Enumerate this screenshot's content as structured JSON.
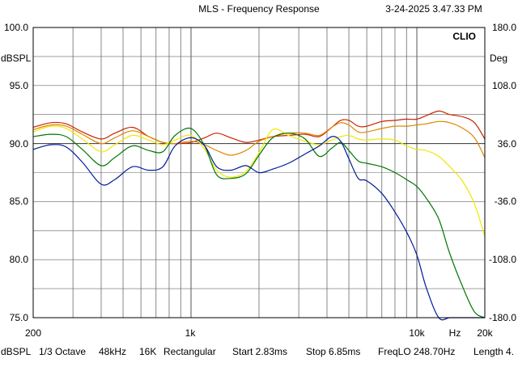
{
  "header": {
    "title": "MLS - Frequency Response",
    "timestamp": "3-24-2025 3.47.33 PM",
    "brand": "CLIO"
  },
  "footer": {
    "unit": "dBSPL",
    "smoothing": "1/3 Octave",
    "sample_rate": "48kHz",
    "size": "16K",
    "window": "Rectangular",
    "start": "Start 2.83ms",
    "stop": "Stop 6.85ms",
    "freqlo": "FreqLO 248.70Hz",
    "length": "Length 4."
  },
  "chart_data": {
    "type": "line",
    "xscale": "log",
    "xlim": [
      200,
      20000
    ],
    "ylim": [
      75,
      100
    ],
    "y2lim": [
      -180,
      180
    ],
    "ylabel": "dBSPL",
    "y2label": "Deg",
    "xlabel": "Hz",
    "grid": true,
    "x_ticks": [
      {
        "value": 200,
        "label": "200"
      },
      {
        "value": 1000,
        "label": "1k"
      },
      {
        "value": 10000,
        "label": "10k"
      },
      {
        "value": 20000,
        "label": "20k"
      }
    ],
    "y_ticks": [
      "100.0",
      "95.0",
      "90.0",
      "85.0",
      "80.0",
      "75.0"
    ],
    "y2_ticks": [
      "180.0",
      "108.0",
      "36.0",
      "-36.0",
      "-108.0",
      "-180.0"
    ],
    "series": [
      {
        "color": "#cc2200",
        "x": [
          200,
          240,
          280,
          330,
          400,
          460,
          550,
          650,
          750,
          850,
          1000,
          1150,
          1300,
          1500,
          1750,
          2000,
          2300,
          2700,
          3200,
          3700,
          4200,
          4600,
          5000,
          5500,
          6000,
          7000,
          8000,
          9000,
          10000,
          11000,
          12500,
          14000,
          16000,
          18000,
          20000
        ],
        "y": [
          91.4,
          91.8,
          91.7,
          91.0,
          90.4,
          90.9,
          91.4,
          90.6,
          90.1,
          90.0,
          90.1,
          90.5,
          90.9,
          90.5,
          90.1,
          90.3,
          90.6,
          90.7,
          90.8,
          90.6,
          91.4,
          92.0,
          92.0,
          91.5,
          91.5,
          91.9,
          92.0,
          92.1,
          92.1,
          92.4,
          92.8,
          92.5,
          92.3,
          91.8,
          90.4
        ]
      },
      {
        "color": "#dd8800",
        "x": [
          200,
          240,
          280,
          330,
          400,
          460,
          550,
          650,
          750,
          850,
          1000,
          1150,
          1300,
          1500,
          1750,
          2000,
          2300,
          2700,
          3200,
          3700,
          4200,
          4600,
          5000,
          5500,
          6000,
          7000,
          8000,
          9000,
          10000,
          11000,
          12500,
          14000,
          16000,
          18000,
          20000
        ],
        "y": [
          91.2,
          91.6,
          91.5,
          90.8,
          90.0,
          90.5,
          91.1,
          90.6,
          90.1,
          90.0,
          90.2,
          89.9,
          89.4,
          89.0,
          89.4,
          90.2,
          90.6,
          90.9,
          90.9,
          90.7,
          91.4,
          91.8,
          91.6,
          91.0,
          91.0,
          91.3,
          91.5,
          91.5,
          91.6,
          91.7,
          91.9,
          91.8,
          91.3,
          90.5,
          88.8
        ]
      },
      {
        "color": "#f0e800",
        "x": [
          200,
          240,
          280,
          330,
          400,
          460,
          550,
          650,
          750,
          850,
          1000,
          1150,
          1300,
          1500,
          1750,
          2000,
          2300,
          2700,
          3200,
          3700,
          4200,
          4600,
          5000,
          5500,
          6000,
          7000,
          8000,
          9000,
          10000,
          11000,
          12500,
          14000,
          16000,
          18000,
          20000
        ],
        "y": [
          91.0,
          91.5,
          91.3,
          90.4,
          89.3,
          89.9,
          90.7,
          90.3,
          89.9,
          90.3,
          90.7,
          89.5,
          87.7,
          87.1,
          87.6,
          89.2,
          91.2,
          90.7,
          90.2,
          89.9,
          90.3,
          90.6,
          90.7,
          90.4,
          90.3,
          90.4,
          90.3,
          89.8,
          89.5,
          89.4,
          88.9,
          88.0,
          86.7,
          84.8,
          82.0
        ]
      },
      {
        "color": "#007700",
        "x": [
          200,
          240,
          280,
          330,
          400,
          460,
          550,
          650,
          750,
          850,
          1000,
          1150,
          1300,
          1500,
          1750,
          2000,
          2300,
          2700,
          3200,
          3700,
          4200,
          4600,
          5000,
          5500,
          6000,
          7000,
          8000,
          9000,
          10000,
          11000,
          12500,
          14000,
          16000,
          18000,
          20000
        ],
        "y": [
          90.6,
          90.8,
          90.6,
          89.5,
          88.1,
          88.8,
          89.8,
          89.4,
          89.3,
          90.7,
          91.3,
          89.8,
          87.3,
          87.0,
          87.4,
          89.0,
          90.5,
          90.9,
          90.4,
          88.9,
          89.6,
          90.1,
          89.4,
          88.5,
          88.3,
          88.0,
          87.5,
          86.9,
          86.3,
          85.3,
          83.5,
          80.5,
          77.6,
          75.5,
          75.0
        ]
      },
      {
        "color": "#001a99",
        "x": [
          200,
          240,
          280,
          330,
          400,
          460,
          550,
          650,
          750,
          850,
          1000,
          1150,
          1300,
          1500,
          1750,
          2000,
          2300,
          2700,
          3200,
          3700,
          4200,
          4600,
          5000,
          5500,
          6000,
          7000,
          8000,
          9000,
          10000,
          11000,
          12500,
          14000,
          16000,
          18000,
          20000
        ],
        "y": [
          89.5,
          89.9,
          89.7,
          88.4,
          86.5,
          86.9,
          88.0,
          87.7,
          88.0,
          89.8,
          90.5,
          89.8,
          88.0,
          87.7,
          88.1,
          87.5,
          87.8,
          88.3,
          89.1,
          89.8,
          90.6,
          90.2,
          88.7,
          87.0,
          86.8,
          85.7,
          84.1,
          82.4,
          80.4,
          77.6,
          75.0,
          75.0,
          75.0,
          75.0,
          75.0
        ]
      }
    ]
  }
}
